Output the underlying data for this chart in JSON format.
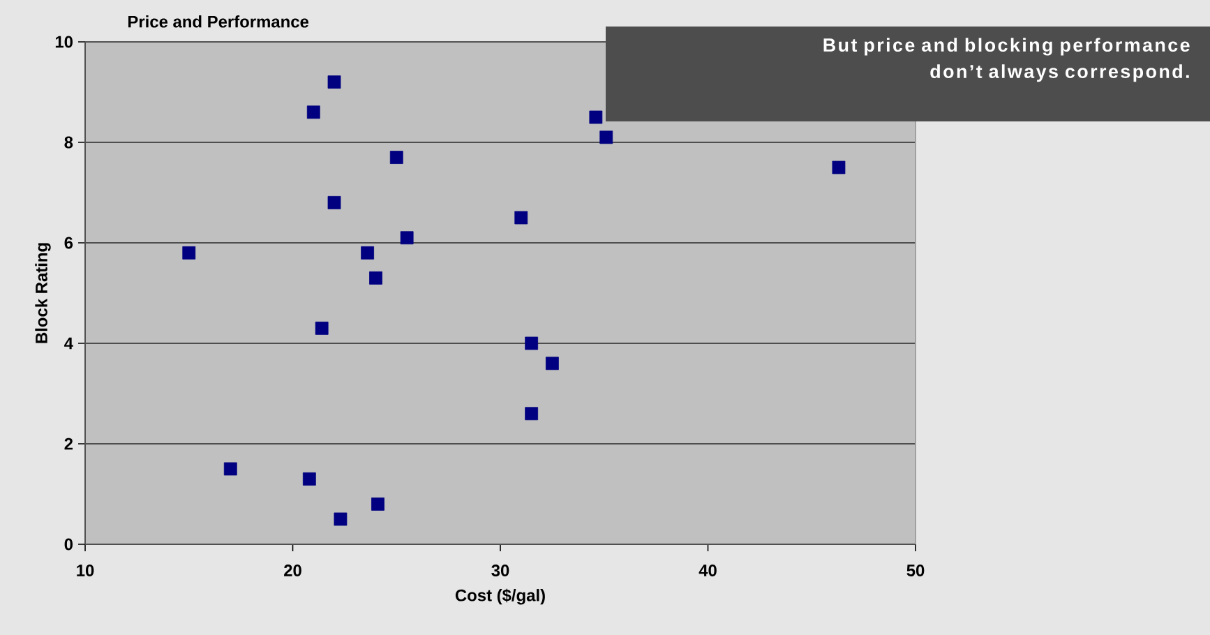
{
  "chart_data": {
    "type": "scatter",
    "title": "Price and Performance",
    "xlabel": "Cost ($/gal)",
    "ylabel": "Block Rating",
    "annotations": [
      "But price and blocking performance don’t always correspond."
    ],
    "x": [
      15.0,
      21.0,
      22.0,
      25.0,
      22.0,
      25.5,
      23.6,
      24.0,
      21.4,
      17.0,
      20.8,
      22.3,
      24.1,
      34.6,
      35.1,
      46.3,
      31.0,
      31.5,
      32.5,
      31.5
    ],
    "values": [
      5.8,
      8.6,
      9.2,
      7.7,
      6.8,
      6.1,
      5.8,
      5.3,
      4.3,
      1.5,
      1.3,
      0.5,
      0.8,
      8.5,
      8.1,
      7.5,
      6.5,
      4.0,
      3.6,
      2.6
    ],
    "color": "#000080",
    "marker": "square",
    "xlim": [
      10,
      50
    ],
    "ylim": [
      0,
      10
    ],
    "xticks": [
      10,
      20,
      30,
      40,
      50
    ],
    "yticks": [
      0,
      2,
      4,
      6,
      8,
      10
    ],
    "grid": "y"
  }
}
